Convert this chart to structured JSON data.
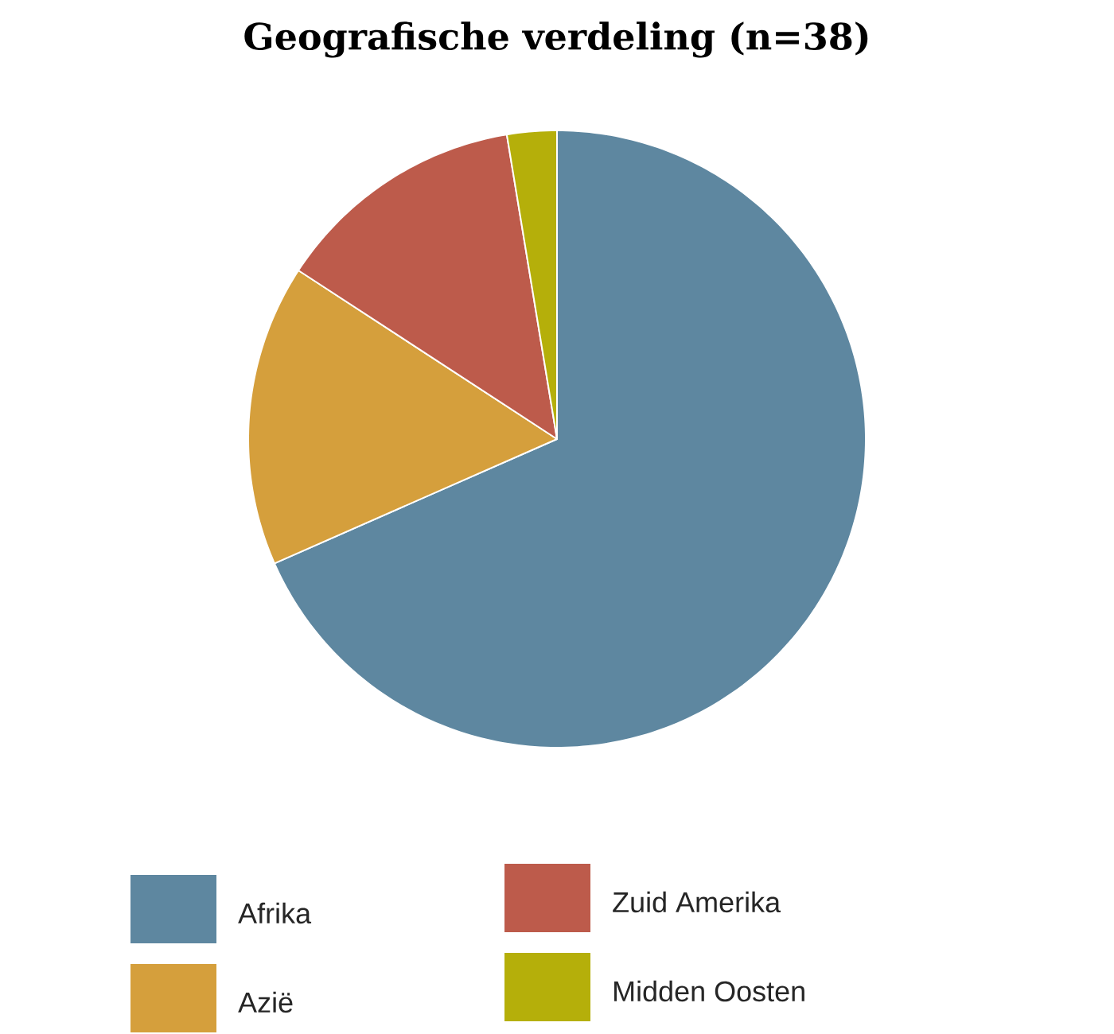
{
  "chart_data": {
    "type": "pie",
    "title": "Geografische verdeling (n=38)",
    "categories": [
      "Afrika",
      "Azië",
      "Zuid Amerika",
      "Midden Oosten"
    ],
    "values": [
      68.4,
      15.8,
      13.2,
      2.6
    ],
    "colors": [
      "#5e87a0",
      "#d59f3c",
      "#bd5b4b",
      "#b5af0a"
    ],
    "legend": "bottom"
  }
}
